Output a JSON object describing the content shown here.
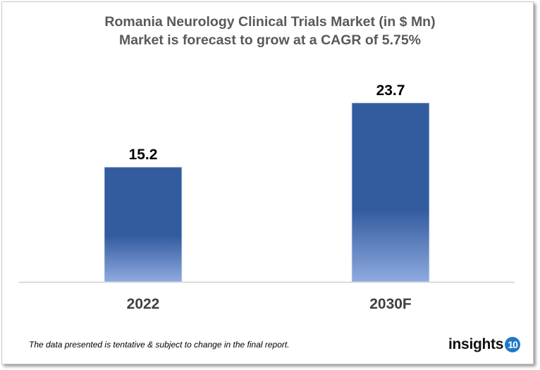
{
  "chart_data": {
    "type": "bar",
    "title": "Romania Neurology Clinical Trials Market (in $ Mn)",
    "subtitle": "Market is forecast to grow at a CAGR of 5.75%",
    "categories": [
      "2022",
      "2030F"
    ],
    "values": [
      15.2,
      23.7
    ],
    "data_labels": [
      "15.2",
      "23.7"
    ],
    "xlabel": "",
    "ylabel": "",
    "ylim": [
      0,
      30
    ],
    "grid": false,
    "colors": {
      "bar_top": "#335C9F",
      "bar_bottom": "#8FAAE0"
    }
  },
  "footer": {
    "note": "The data presented is tentative & subject to change in the final report."
  },
  "logo": {
    "text": "insights",
    "badge": "10"
  }
}
